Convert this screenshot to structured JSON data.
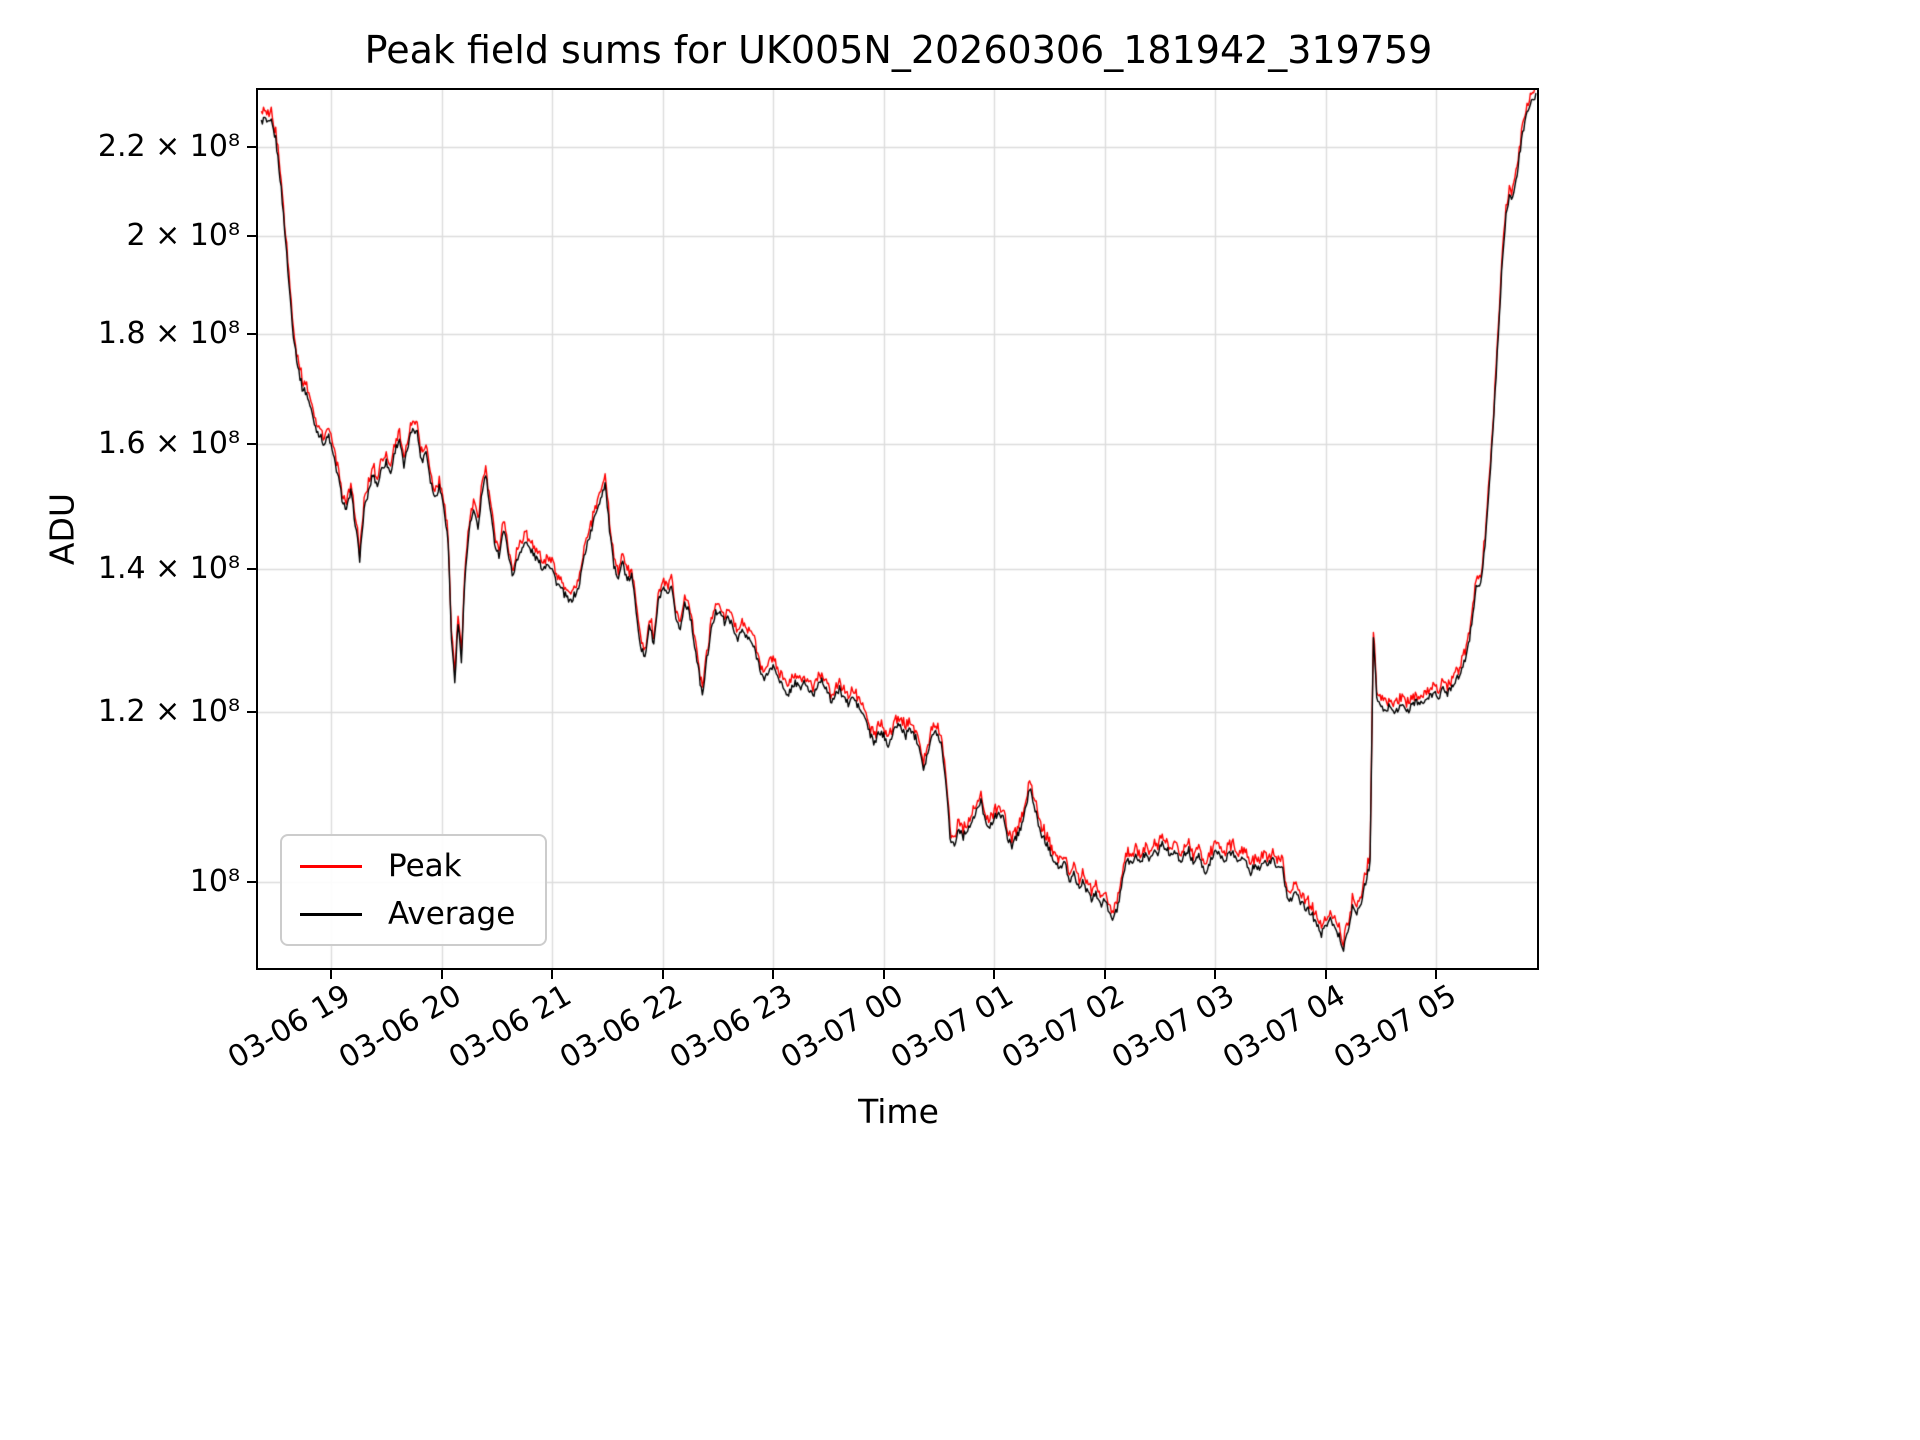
{
  "title": "Peak field sums for UK005N_20260306_181942_319759",
  "xlabel": "Time",
  "ylabel": "ADU",
  "legend": {
    "items": [
      {
        "label": "Peak",
        "color": "#ff0000"
      },
      {
        "label": "Average",
        "color": "#000000"
      }
    ]
  },
  "chart_data": {
    "type": "line",
    "title": "Peak field sums for UK005N_20260306_181942_319759",
    "xlabel": "Time",
    "ylabel": "ADU",
    "yscale": "log",
    "unit": "1e8 ADU",
    "grid": true,
    "grid_color": "#dcdcdc",
    "legend_position": "lower left",
    "xlim_hours": [
      18.34,
      29.91
    ],
    "ylim": [
      0.912,
      2.34
    ],
    "x_ticks": [
      {
        "t": 19,
        "label": "03-06 19"
      },
      {
        "t": 20,
        "label": "03-06 20"
      },
      {
        "t": 21,
        "label": "03-06 21"
      },
      {
        "t": 22,
        "label": "03-06 22"
      },
      {
        "t": 23,
        "label": "03-06 23"
      },
      {
        "t": 24,
        "label": "03-07 00"
      },
      {
        "t": 25,
        "label": "03-07 01"
      },
      {
        "t": 26,
        "label": "03-07 02"
      },
      {
        "t": 27,
        "label": "03-07 03"
      },
      {
        "t": 28,
        "label": "03-07 04"
      },
      {
        "t": 29,
        "label": "03-07 05"
      }
    ],
    "y_ticks": [
      {
        "v": 1.0,
        "label": "10⁸"
      },
      {
        "v": 1.2,
        "label": "1.2 × 10⁸"
      },
      {
        "v": 1.4,
        "label": "1.4 × 10⁸"
      },
      {
        "v": 1.6,
        "label": "1.6 × 10⁸"
      },
      {
        "v": 1.8,
        "label": "1.8 × 10⁸"
      },
      {
        "v": 2.0,
        "label": "2 × 10⁸"
      },
      {
        "v": 2.2,
        "label": "2.2 × 10⁸"
      }
    ],
    "series": [
      {
        "name": "Peak",
        "color": "#ff0000"
      },
      {
        "name": "Average",
        "color": "#000000"
      }
    ],
    "noise": {
      "dt": 0.01,
      "avg_amp": 0.004,
      "peak_gap": 0.004,
      "peak_amp": 0.009
    },
    "avg_points": [
      [
        18.37,
        2.26
      ],
      [
        18.4,
        2.27
      ],
      [
        18.43,
        2.255
      ],
      [
        18.46,
        2.26
      ],
      [
        18.5,
        2.22
      ],
      [
        18.54,
        2.13
      ],
      [
        18.58,
        2.02
      ],
      [
        18.62,
        1.9
      ],
      [
        18.66,
        1.8
      ],
      [
        18.7,
        1.74
      ],
      [
        18.74,
        1.7
      ],
      [
        18.78,
        1.69
      ],
      [
        18.82,
        1.66
      ],
      [
        18.86,
        1.63
      ],
      [
        18.9,
        1.615
      ],
      [
        18.94,
        1.6
      ],
      [
        18.98,
        1.615
      ],
      [
        19.02,
        1.58
      ],
      [
        19.06,
        1.55
      ],
      [
        19.1,
        1.51
      ],
      [
        19.14,
        1.49
      ],
      [
        19.18,
        1.52
      ],
      [
        19.22,
        1.47
      ],
      [
        19.26,
        1.415
      ],
      [
        19.3,
        1.49
      ],
      [
        19.34,
        1.52
      ],
      [
        19.38,
        1.55
      ],
      [
        19.42,
        1.53
      ],
      [
        19.46,
        1.56
      ],
      [
        19.5,
        1.57
      ],
      [
        19.54,
        1.55
      ],
      [
        19.58,
        1.59
      ],
      [
        19.62,
        1.61
      ],
      [
        19.66,
        1.56
      ],
      [
        19.7,
        1.6
      ],
      [
        19.74,
        1.63
      ],
      [
        19.78,
        1.62
      ],
      [
        19.82,
        1.57
      ],
      [
        19.86,
        1.59
      ],
      [
        19.9,
        1.54
      ],
      [
        19.94,
        1.51
      ],
      [
        19.98,
        1.53
      ],
      [
        20.02,
        1.5
      ],
      [
        20.06,
        1.44
      ],
      [
        20.09,
        1.3
      ],
      [
        20.12,
        1.24
      ],
      [
        20.15,
        1.32
      ],
      [
        20.18,
        1.27
      ],
      [
        20.21,
        1.38
      ],
      [
        20.25,
        1.46
      ],
      [
        20.29,
        1.49
      ],
      [
        20.33,
        1.46
      ],
      [
        20.36,
        1.51
      ],
      [
        20.4,
        1.55
      ],
      [
        20.44,
        1.49
      ],
      [
        20.48,
        1.44
      ],
      [
        20.52,
        1.42
      ],
      [
        20.56,
        1.46
      ],
      [
        20.6,
        1.43
      ],
      [
        20.64,
        1.39
      ],
      [
        20.68,
        1.41
      ],
      [
        20.72,
        1.43
      ],
      [
        20.76,
        1.44
      ],
      [
        20.8,
        1.43
      ],
      [
        20.84,
        1.42
      ],
      [
        20.88,
        1.41
      ],
      [
        20.92,
        1.4
      ],
      [
        20.96,
        1.41
      ],
      [
        21.0,
        1.4
      ],
      [
        21.04,
        1.38
      ],
      [
        21.08,
        1.37
      ],
      [
        21.12,
        1.36
      ],
      [
        21.16,
        1.35
      ],
      [
        21.2,
        1.36
      ],
      [
        21.24,
        1.37
      ],
      [
        21.28,
        1.41
      ],
      [
        21.32,
        1.44
      ],
      [
        21.36,
        1.46
      ],
      [
        21.4,
        1.49
      ],
      [
        21.44,
        1.51
      ],
      [
        21.48,
        1.535
      ],
      [
        21.52,
        1.46
      ],
      [
        21.56,
        1.4
      ],
      [
        21.6,
        1.39
      ],
      [
        21.64,
        1.41
      ],
      [
        21.68,
        1.38
      ],
      [
        21.72,
        1.39
      ],
      [
        21.76,
        1.34
      ],
      [
        21.8,
        1.29
      ],
      [
        21.84,
        1.27
      ],
      [
        21.88,
        1.32
      ],
      [
        21.92,
        1.29
      ],
      [
        21.96,
        1.35
      ],
      [
        22.0,
        1.37
      ],
      [
        22.04,
        1.36
      ],
      [
        22.08,
        1.37
      ],
      [
        22.12,
        1.33
      ],
      [
        22.16,
        1.31
      ],
      [
        22.2,
        1.35
      ],
      [
        22.24,
        1.34
      ],
      [
        22.28,
        1.3
      ],
      [
        22.32,
        1.26
      ],
      [
        22.36,
        1.22
      ],
      [
        22.4,
        1.27
      ],
      [
        22.44,
        1.31
      ],
      [
        22.48,
        1.335
      ],
      [
        22.52,
        1.34
      ],
      [
        22.56,
        1.32
      ],
      [
        22.6,
        1.33
      ],
      [
        22.64,
        1.31
      ],
      [
        22.68,
        1.3
      ],
      [
        22.72,
        1.31
      ],
      [
        22.76,
        1.3
      ],
      [
        22.8,
        1.295
      ],
      [
        22.84,
        1.28
      ],
      [
        22.88,
        1.26
      ],
      [
        22.92,
        1.24
      ],
      [
        22.96,
        1.255
      ],
      [
        23.0,
        1.26
      ],
      [
        23.04,
        1.25
      ],
      [
        23.08,
        1.235
      ],
      [
        23.12,
        1.22
      ],
      [
        23.16,
        1.23
      ],
      [
        23.2,
        1.24
      ],
      [
        23.24,
        1.23
      ],
      [
        23.28,
        1.24
      ],
      [
        23.32,
        1.23
      ],
      [
        23.36,
        1.22
      ],
      [
        23.4,
        1.235
      ],
      [
        23.44,
        1.245
      ],
      [
        23.48,
        1.23
      ],
      [
        23.52,
        1.215
      ],
      [
        23.56,
        1.22
      ],
      [
        23.6,
        1.23
      ],
      [
        23.64,
        1.22
      ],
      [
        23.68,
        1.21
      ],
      [
        23.72,
        1.22
      ],
      [
        23.76,
        1.21
      ],
      [
        23.8,
        1.2
      ],
      [
        23.84,
        1.19
      ],
      [
        23.88,
        1.17
      ],
      [
        23.92,
        1.16
      ],
      [
        23.96,
        1.175
      ],
      [
        24.0,
        1.17
      ],
      [
        24.04,
        1.16
      ],
      [
        24.08,
        1.17
      ],
      [
        24.12,
        1.185
      ],
      [
        24.16,
        1.18
      ],
      [
        24.2,
        1.17
      ],
      [
        24.24,
        1.18
      ],
      [
        24.28,
        1.17
      ],
      [
        24.32,
        1.16
      ],
      [
        24.36,
        1.13
      ],
      [
        24.4,
        1.15
      ],
      [
        24.44,
        1.17
      ],
      [
        24.48,
        1.175
      ],
      [
        24.52,
        1.16
      ],
      [
        24.56,
        1.12
      ],
      [
        24.6,
        1.05
      ],
      [
        24.64,
        1.04
      ],
      [
        24.68,
        1.06
      ],
      [
        24.72,
        1.05
      ],
      [
        24.76,
        1.06
      ],
      [
        24.8,
        1.065
      ],
      [
        24.84,
        1.08
      ],
      [
        24.88,
        1.09
      ],
      [
        24.92,
        1.07
      ],
      [
        24.96,
        1.06
      ],
      [
        25.0,
        1.07
      ],
      [
        25.04,
        1.08
      ],
      [
        25.08,
        1.07
      ],
      [
        25.12,
        1.05
      ],
      [
        25.16,
        1.04
      ],
      [
        25.2,
        1.05
      ],
      [
        25.24,
        1.06
      ],
      [
        25.28,
        1.08
      ],
      [
        25.32,
        1.105
      ],
      [
        25.36,
        1.09
      ],
      [
        25.4,
        1.06
      ],
      [
        25.44,
        1.05
      ],
      [
        25.48,
        1.04
      ],
      [
        25.52,
        1.03
      ],
      [
        25.56,
        1.02
      ],
      [
        25.6,
        1.015
      ],
      [
        25.64,
        1.02
      ],
      [
        25.68,
        1.0
      ],
      [
        25.72,
        1.01
      ],
      [
        25.76,
        0.995
      ],
      [
        25.8,
        1.0
      ],
      [
        25.84,
        0.99
      ],
      [
        25.88,
        0.98
      ],
      [
        25.92,
        0.99
      ],
      [
        25.96,
        0.975
      ],
      [
        26.0,
        0.98
      ],
      [
        26.04,
        0.97
      ],
      [
        26.08,
        0.96
      ],
      [
        26.12,
        0.975
      ],
      [
        26.16,
        1.0
      ],
      [
        26.2,
        1.025
      ],
      [
        26.24,
        1.02
      ],
      [
        26.28,
        1.03
      ],
      [
        26.32,
        1.02
      ],
      [
        26.36,
        1.03
      ],
      [
        26.4,
        1.025
      ],
      [
        26.44,
        1.035
      ],
      [
        26.48,
        1.03
      ],
      [
        26.52,
        1.045
      ],
      [
        26.56,
        1.035
      ],
      [
        26.6,
        1.03
      ],
      [
        26.64,
        1.035
      ],
      [
        26.68,
        1.02
      ],
      [
        26.72,
        1.03
      ],
      [
        26.76,
        1.035
      ],
      [
        26.8,
        1.02
      ],
      [
        26.84,
        1.03
      ],
      [
        26.88,
        1.02
      ],
      [
        26.92,
        1.01
      ],
      [
        26.96,
        1.025
      ],
      [
        27.0,
        1.035
      ],
      [
        27.04,
        1.03
      ],
      [
        27.08,
        1.02
      ],
      [
        27.12,
        1.03
      ],
      [
        27.16,
        1.035
      ],
      [
        27.2,
        1.02
      ],
      [
        27.24,
        1.03
      ],
      [
        27.28,
        1.02
      ],
      [
        27.32,
        1.01
      ],
      [
        27.36,
        1.02
      ],
      [
        27.4,
        1.015
      ],
      [
        27.44,
        1.025
      ],
      [
        27.48,
        1.02
      ],
      [
        27.52,
        1.025
      ],
      [
        27.56,
        1.015
      ],
      [
        27.6,
        1.02
      ],
      [
        27.64,
        0.99
      ],
      [
        27.68,
        0.98
      ],
      [
        27.72,
        0.99
      ],
      [
        27.76,
        0.98
      ],
      [
        27.8,
        0.975
      ],
      [
        27.84,
        0.97
      ],
      [
        27.88,
        0.965
      ],
      [
        27.92,
        0.955
      ],
      [
        27.96,
        0.945
      ],
      [
        28.0,
        0.955
      ],
      [
        28.04,
        0.965
      ],
      [
        28.08,
        0.95
      ],
      [
        28.12,
        0.945
      ],
      [
        28.16,
        0.93
      ],
      [
        28.2,
        0.95
      ],
      [
        28.24,
        0.975
      ],
      [
        28.28,
        0.965
      ],
      [
        28.32,
        0.98
      ],
      [
        28.36,
        1.0
      ],
      [
        28.4,
        1.02
      ],
      [
        28.43,
        1.3
      ],
      [
        28.46,
        1.22
      ],
      [
        28.5,
        1.205
      ],
      [
        28.54,
        1.2
      ],
      [
        28.58,
        1.21
      ],
      [
        28.62,
        1.2
      ],
      [
        28.66,
        1.205
      ],
      [
        28.7,
        1.21
      ],
      [
        28.74,
        1.2
      ],
      [
        28.78,
        1.21
      ],
      [
        28.82,
        1.215
      ],
      [
        28.86,
        1.21
      ],
      [
        28.9,
        1.215
      ],
      [
        28.94,
        1.22
      ],
      [
        28.98,
        1.225
      ],
      [
        29.02,
        1.22
      ],
      [
        29.06,
        1.23
      ],
      [
        29.1,
        1.225
      ],
      [
        29.14,
        1.235
      ],
      [
        29.18,
        1.245
      ],
      [
        29.22,
        1.25
      ],
      [
        29.26,
        1.27
      ],
      [
        29.3,
        1.3
      ],
      [
        29.33,
        1.33
      ],
      [
        29.36,
        1.38
      ],
      [
        29.39,
        1.37
      ],
      [
        29.42,
        1.4
      ],
      [
        29.45,
        1.46
      ],
      [
        29.48,
        1.53
      ],
      [
        29.51,
        1.62
      ],
      [
        29.54,
        1.72
      ],
      [
        29.57,
        1.84
      ],
      [
        29.6,
        1.96
      ],
      [
        29.63,
        2.05
      ],
      [
        29.66,
        2.09
      ],
      [
        29.69,
        2.08
      ],
      [
        29.72,
        2.12
      ],
      [
        29.75,
        2.18
      ],
      [
        29.78,
        2.23
      ],
      [
        29.81,
        2.27
      ],
      [
        29.84,
        2.3
      ],
      [
        29.87,
        2.315
      ],
      [
        29.9,
        2.325
      ]
    ]
  }
}
